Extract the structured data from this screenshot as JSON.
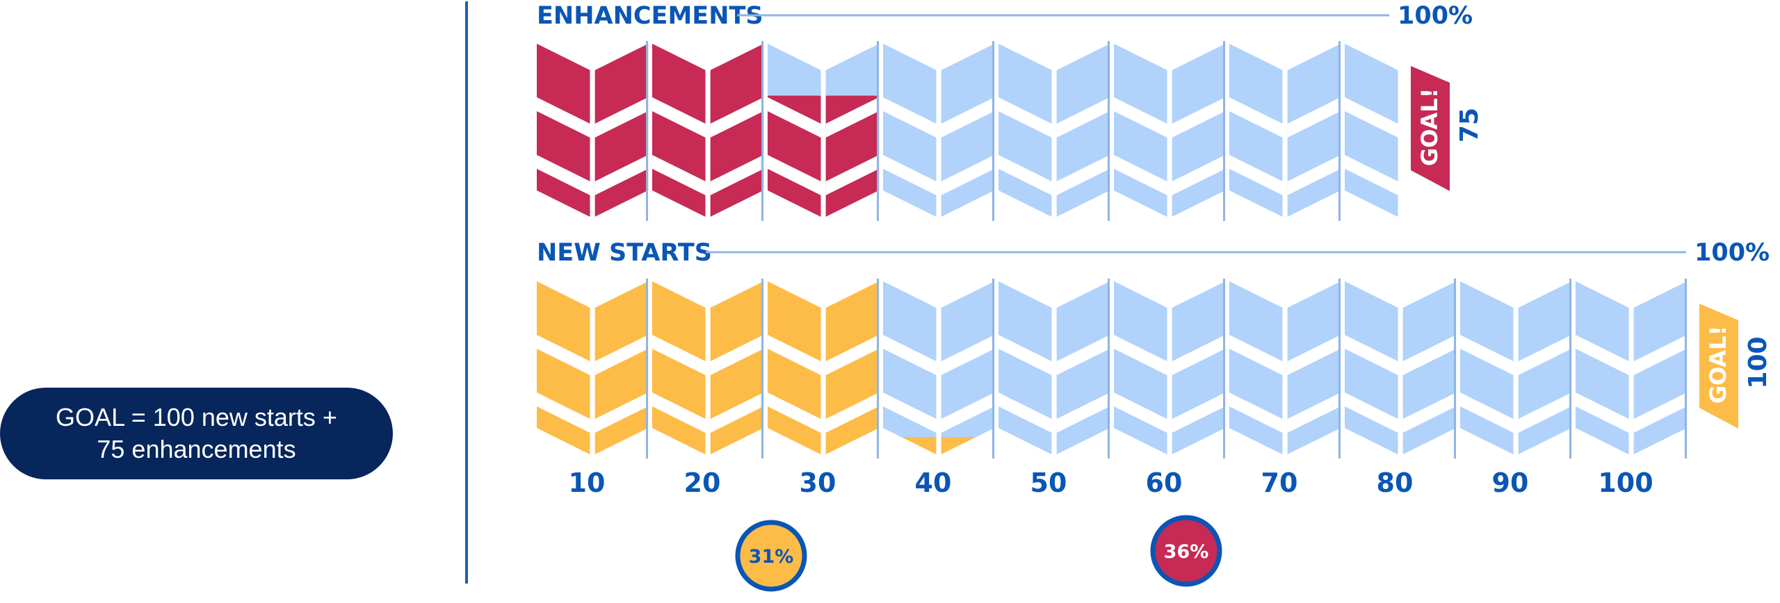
{
  "goal_note": {
    "line1": "GOAL = 100 new starts +",
    "line2": "75 enhancements"
  },
  "colors": {
    "enhancements": "#c62a55",
    "new_starts": "#fdbc48",
    "empty": "#b0d2fb",
    "accent_text": "#0a56b5",
    "pill": "#06265c"
  },
  "chart_data": {
    "type": "bar",
    "x_tick_labels": [
      "10",
      "20",
      "30",
      "40",
      "50",
      "60",
      "70",
      "80",
      "90",
      "100"
    ],
    "series": [
      {
        "name": "ENHANCEMENTS",
        "max_label": "100%",
        "goal_label": "GOAL!",
        "goal_value": "75",
        "goal": 75,
        "value": 27,
        "percent_label": "36%"
      },
      {
        "name": "NEW STARTS",
        "max_label": "100%",
        "goal_label": "GOAL!",
        "goal_value": "100",
        "goal": 100,
        "value": 31,
        "percent_label": "31%"
      }
    ]
  }
}
